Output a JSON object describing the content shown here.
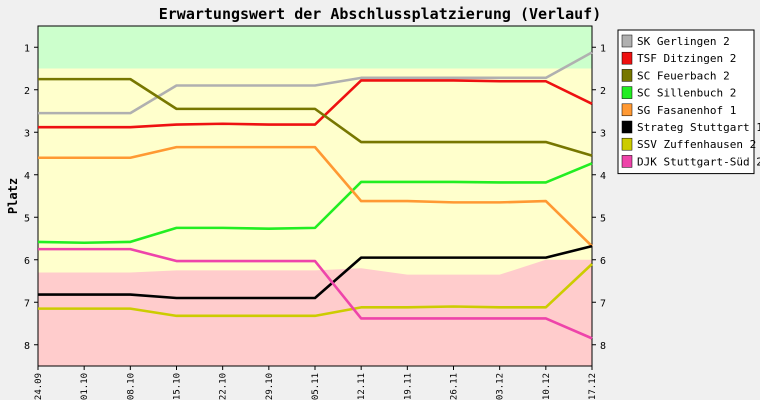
{
  "chart_data": {
    "type": "line",
    "title": "Erwartungswert der Abschlussplatzierung (Verlauf)",
    "ylabel": "Platz",
    "xlabel": "",
    "y_reversed": true,
    "ylim": [
      0.5,
      8.5
    ],
    "y_ticks": [
      1,
      2,
      3,
      4,
      5,
      6,
      7,
      8
    ],
    "categories": [
      "24.09",
      "01.10",
      "08.10",
      "15.10",
      "22.10",
      "29.10",
      "05.11",
      "12.11",
      "19.11",
      "26.11",
      "03.12",
      "10.12",
      "17.12"
    ],
    "legend_position": "right",
    "bands": [
      {
        "name": "promotion",
        "color": "#ccffcc",
        "upper": [
          1.5,
          1.5,
          1.5,
          1.5,
          1.5,
          1.5,
          1.5,
          1.5,
          1.5,
          1.5,
          1.5,
          1.5,
          1.5
        ]
      },
      {
        "name": "middle",
        "color": "#ffffcc"
      },
      {
        "name": "relegation",
        "color": "#ffcccc",
        "lower": [
          6.3,
          6.3,
          6.3,
          6.25,
          6.25,
          6.25,
          6.25,
          6.2,
          6.35,
          6.35,
          6.35,
          6.0,
          6.0
        ]
      }
    ],
    "series": [
      {
        "name": "SK Gerlingen 2",
        "color": "#b0b0b0",
        "values": [
          2.55,
          2.55,
          2.55,
          1.9,
          1.9,
          1.9,
          1.9,
          1.72,
          1.72,
          1.72,
          1.72,
          1.72,
          1.12
        ]
      },
      {
        "name": "TSF Ditzingen 2",
        "color": "#ee1111",
        "values": [
          2.88,
          2.88,
          2.88,
          2.82,
          2.8,
          2.82,
          2.82,
          1.78,
          1.78,
          1.78,
          1.8,
          1.8,
          2.33
        ]
      },
      {
        "name": "SC Feuerbach 2",
        "color": "#777700",
        "values": [
          1.75,
          1.75,
          1.75,
          2.45,
          2.45,
          2.45,
          2.45,
          3.23,
          3.23,
          3.23,
          3.23,
          3.23,
          3.55
        ]
      },
      {
        "name": "SC Sillenbuch 2",
        "color": "#22ee22",
        "values": [
          5.58,
          5.6,
          5.58,
          5.25,
          5.25,
          5.27,
          5.25,
          4.17,
          4.17,
          4.17,
          4.18,
          4.18,
          3.73
        ]
      },
      {
        "name": "SG Fasanenhof 1",
        "color": "#ff9933",
        "values": [
          3.6,
          3.6,
          3.6,
          3.35,
          3.35,
          3.35,
          3.35,
          4.62,
          4.62,
          4.65,
          4.65,
          4.62,
          5.68
        ]
      },
      {
        "name": "Strateg Stuttgart 1",
        "color": "#000000",
        "values": [
          6.82,
          6.82,
          6.82,
          6.9,
          6.9,
          6.9,
          6.9,
          5.95,
          5.95,
          5.95,
          5.95,
          5.95,
          5.68
        ]
      },
      {
        "name": "SSV Zuffenhausen 2",
        "color": "#cccc00",
        "values": [
          7.15,
          7.15,
          7.15,
          7.32,
          7.32,
          7.32,
          7.32,
          7.12,
          7.12,
          7.1,
          7.12,
          7.12,
          6.1
        ]
      },
      {
        "name": "DJK Stuttgart-Süd 2",
        "color": "#ee44aa",
        "values": [
          5.75,
          5.75,
          5.75,
          6.03,
          6.03,
          6.03,
          6.03,
          7.38,
          7.38,
          7.38,
          7.38,
          7.38,
          7.85
        ]
      }
    ]
  }
}
